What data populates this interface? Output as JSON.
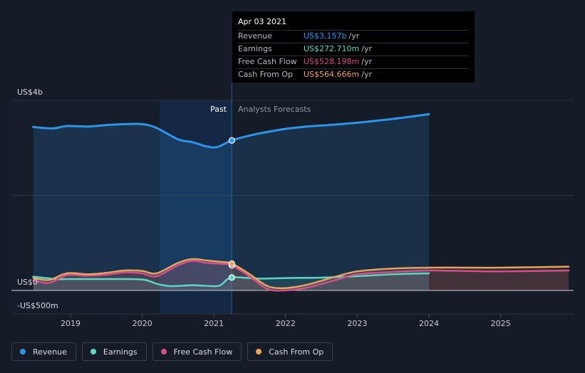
{
  "chart_data": {
    "type": "line",
    "y_axis": {
      "top_label": "US$4b",
      "zero_label": "US$0",
      "bottom_label": "-US$500m",
      "ylim": [
        -500,
        4000
      ]
    },
    "x_ticks": [
      "2019",
      "2020",
      "2021",
      "2022",
      "2023",
      "2024",
      "2025"
    ],
    "xlim": [
      2018.5,
      2025.95
    ],
    "region_labels": {
      "past": "Past",
      "forecast": "Analysts Forecasts"
    },
    "past_end": 2021.25,
    "series": [
      {
        "name": "Revenue",
        "color": "#2e95e6",
        "points": [
          [
            2018.48,
            3440
          ],
          [
            2018.75,
            3410
          ],
          [
            2018.95,
            3460
          ],
          [
            2019.25,
            3450
          ],
          [
            2019.5,
            3480
          ],
          [
            2019.75,
            3500
          ],
          [
            2020.0,
            3500
          ],
          [
            2020.2,
            3420
          ],
          [
            2020.5,
            3180
          ],
          [
            2020.7,
            3120
          ],
          [
            2020.9,
            3030
          ],
          [
            2021.05,
            3020
          ],
          [
            2021.25,
            3157
          ],
          [
            2021.5,
            3260
          ],
          [
            2021.8,
            3350
          ],
          [
            2022.0,
            3400
          ],
          [
            2022.3,
            3450
          ],
          [
            2022.6,
            3480
          ],
          [
            2023.0,
            3530
          ],
          [
            2023.5,
            3610
          ],
          [
            2024.0,
            3710
          ]
        ]
      },
      {
        "name": "Earnings",
        "color": "#5fd6c3",
        "points": [
          [
            2018.48,
            290
          ],
          [
            2018.8,
            240
          ],
          [
            2019.0,
            240
          ],
          [
            2019.5,
            240
          ],
          [
            2020.0,
            230
          ],
          [
            2020.2,
            140
          ],
          [
            2020.4,
            90
          ],
          [
            2020.7,
            110
          ],
          [
            2021.0,
            90
          ],
          [
            2021.1,
            120
          ],
          [
            2021.25,
            272.71
          ],
          [
            2021.6,
            250
          ],
          [
            2022.0,
            260
          ],
          [
            2022.5,
            270
          ],
          [
            2023.0,
            300
          ],
          [
            2023.5,
            340
          ],
          [
            2024.0,
            360
          ]
        ]
      },
      {
        "name": "Free Cash Flow",
        "color": "#d5508b",
        "points": [
          [
            2018.48,
            210
          ],
          [
            2018.7,
            160
          ],
          [
            2018.95,
            320
          ],
          [
            2019.2,
            310
          ],
          [
            2019.5,
            330
          ],
          [
            2019.75,
            380
          ],
          [
            2020.0,
            360
          ],
          [
            2020.2,
            300
          ],
          [
            2020.5,
            530
          ],
          [
            2020.7,
            620
          ],
          [
            2020.9,
            580
          ],
          [
            2021.1,
            560
          ],
          [
            2021.25,
            528.2
          ],
          [
            2021.5,
            290
          ],
          [
            2021.75,
            30
          ],
          [
            2022.0,
            0
          ],
          [
            2022.3,
            60
          ],
          [
            2022.7,
            220
          ],
          [
            2023.0,
            340
          ],
          [
            2023.5,
            390
          ],
          [
            2024.0,
            420
          ],
          [
            2024.5,
            410
          ],
          [
            2025.0,
            400
          ],
          [
            2025.95,
            420
          ]
        ]
      },
      {
        "name": "Cash From Op",
        "color": "#e8a35f",
        "points": [
          [
            2018.48,
            260
          ],
          [
            2018.7,
            220
          ],
          [
            2018.95,
            360
          ],
          [
            2019.25,
            340
          ],
          [
            2019.5,
            370
          ],
          [
            2019.75,
            420
          ],
          [
            2020.0,
            410
          ],
          [
            2020.2,
            360
          ],
          [
            2020.5,
            580
          ],
          [
            2020.7,
            660
          ],
          [
            2020.9,
            630
          ],
          [
            2021.1,
            600
          ],
          [
            2021.25,
            564.67
          ],
          [
            2021.5,
            340
          ],
          [
            2021.75,
            90
          ],
          [
            2022.0,
            50
          ],
          [
            2022.3,
            120
          ],
          [
            2022.7,
            290
          ],
          [
            2023.0,
            400
          ],
          [
            2023.5,
            460
          ],
          [
            2024.0,
            480
          ],
          [
            2024.5,
            480
          ],
          [
            2025.0,
            480
          ],
          [
            2025.95,
            500
          ]
        ]
      }
    ]
  },
  "tooltip": {
    "date": "Apr 03 2021",
    "rows": [
      {
        "label": "Revenue",
        "value": "US$3.157b",
        "unit": "/yr",
        "color": "#2e95e6"
      },
      {
        "label": "Earnings",
        "value": "US$272.710m",
        "unit": "/yr",
        "color": "#5fd6c3"
      },
      {
        "label": "Free Cash Flow",
        "value": "US$528.198m",
        "unit": "/yr",
        "color": "#d5508b"
      },
      {
        "label": "Cash From Op",
        "value": "US$564.666m",
        "unit": "/yr",
        "color": "#e8a35f"
      }
    ]
  },
  "legend": [
    {
      "label": "Revenue",
      "color": "#2e95e6"
    },
    {
      "label": "Earnings",
      "color": "#5fd6c3"
    },
    {
      "label": "Free Cash Flow",
      "color": "#d5508b"
    },
    {
      "label": "Cash From Op",
      "color": "#e8a35f"
    }
  ]
}
